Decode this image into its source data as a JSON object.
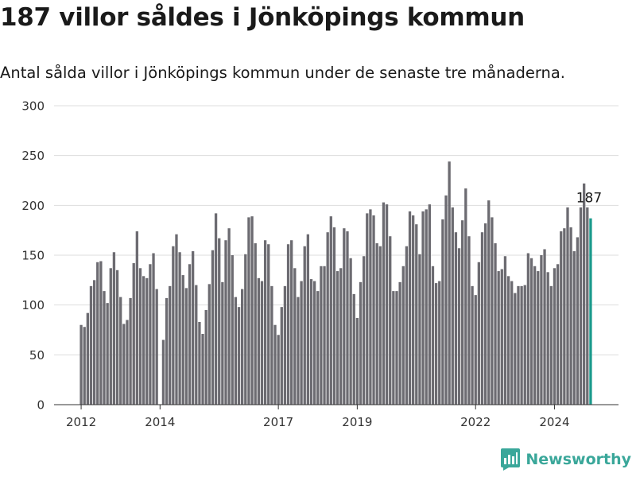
{
  "title": "187 villor såldes i Jönköpings kommun",
  "subtitle": "Antal sålda villor i Jönköpings kommun under de senaste tre månaderna.",
  "brand": {
    "name": "Newsworthy",
    "color": "#3aa79a"
  },
  "colors": {
    "bar": "#6c6b71",
    "highlight": "#1a9a8c",
    "grid": "#dddddd",
    "axis": "#333333"
  },
  "chart_data": {
    "type": "bar",
    "ylim": [
      0,
      300
    ],
    "yticks": [
      0,
      50,
      100,
      150,
      200,
      250,
      300
    ],
    "xticks": [
      {
        "label": "2012",
        "index": 0
      },
      {
        "label": "2014",
        "index": 24
      },
      {
        "label": "2017",
        "index": 60
      },
      {
        "label": "2019",
        "index": 84
      },
      {
        "label": "2022",
        "index": 120
      },
      {
        "label": "2024",
        "index": 144
      }
    ],
    "xlabel": "",
    "ylabel": "",
    "grid": true,
    "highlight_label": "187",
    "values": [
      80,
      78,
      92,
      119,
      125,
      143,
      144,
      114,
      102,
      137,
      153,
      135,
      108,
      81,
      85,
      107,
      142,
      174,
      137,
      129,
      127,
      141,
      152,
      116,
      0,
      65,
      107,
      119,
      159,
      171,
      153,
      130,
      117,
      141,
      154,
      120,
      83,
      71,
      95,
      121,
      155,
      192,
      167,
      123,
      165,
      177,
      150,
      108,
      98,
      116,
      151,
      188,
      189,
      162,
      127,
      124,
      165,
      161,
      119,
      80,
      70,
      98,
      119,
      161,
      165,
      137,
      108,
      124,
      159,
      171,
      126,
      124,
      114,
      139,
      139,
      173,
      189,
      178,
      134,
      137,
      177,
      174,
      147,
      111,
      87,
      123,
      149,
      192,
      196,
      190,
      162,
      159,
      203,
      201,
      169,
      114,
      114,
      123,
      139,
      159,
      194,
      190,
      181,
      151,
      194,
      196,
      201,
      139,
      122,
      124,
      186,
      210,
      244,
      198,
      173,
      157,
      185,
      217,
      169,
      119,
      110,
      143,
      173,
      182,
      205,
      188,
      162,
      134,
      136,
      149,
      129,
      124,
      112,
      119,
      119,
      120,
      152,
      147,
      139,
      134,
      150,
      156,
      133,
      119,
      137,
      141,
      174,
      177,
      198,
      178,
      154,
      168,
      198,
      222,
      198,
      187
    ]
  }
}
